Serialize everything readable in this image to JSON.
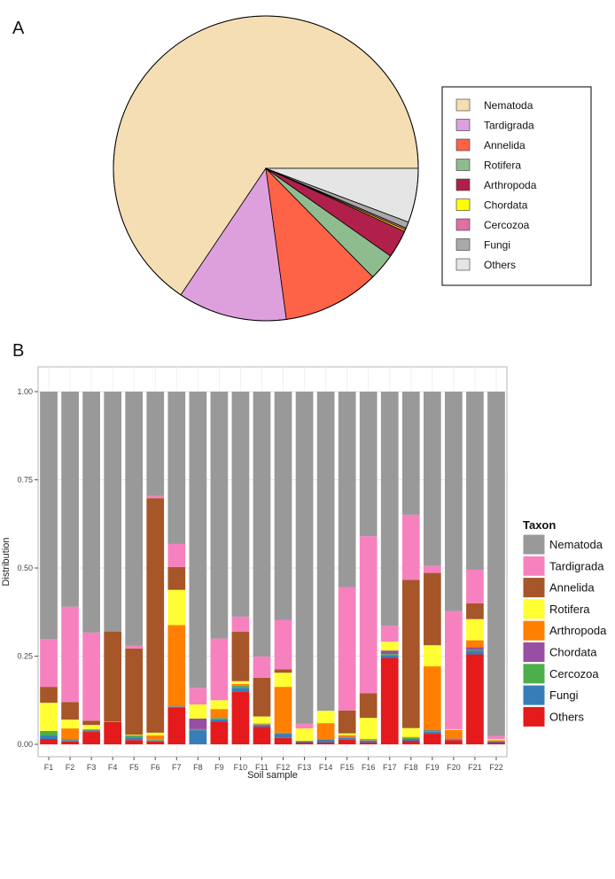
{
  "chart_data": [
    {
      "panel": "A",
      "type": "pie",
      "categories": [
        "Nematoda",
        "Tardigrada",
        "Annelida",
        "Rotifera",
        "Arthropoda",
        "Chordata",
        "Cercozoa",
        "Fungi",
        "Others"
      ],
      "values": [
        0.686,
        0.121,
        0.107,
        0.03,
        0.031,
        0.002,
        0.002,
        0.007,
        0.06
      ],
      "colors": [
        "#F5DEB3",
        "#DDA0DD",
        "#FF6347",
        "#8FBC8F",
        "#B0204B",
        "#FFFF00",
        "#E070A0",
        "#A9A9A9",
        "#E5E5E5"
      ],
      "legend_position": "right"
    },
    {
      "panel": "B",
      "type": "bar",
      "stacked": true,
      "xlabel": "Soil sample",
      "ylabel": "Distribution",
      "ylim": [
        0,
        1
      ],
      "yticks": [
        "0.00",
        "0.25",
        "0.50",
        "0.75",
        "1.00"
      ],
      "legend_title": "Taxon",
      "categories": [
        "F1",
        "F2",
        "F3",
        "F4",
        "F5",
        "F6",
        "F7",
        "F8",
        "F9",
        "F10",
        "F11",
        "F12",
        "F13",
        "F14",
        "F15",
        "F16",
        "F17",
        "F18",
        "F19",
        "F20",
        "F21",
        "F22"
      ],
      "series": [
        {
          "name": "Others",
          "color": "#E41A1C",
          "values": [
            0.015,
            0.008,
            0.035,
            0.063,
            0.012,
            0.008,
            0.103,
            0.0,
            0.065,
            0.15,
            0.05,
            0.018,
            0.005,
            0.005,
            0.013,
            0.005,
            0.245,
            0.01,
            0.03,
            0.012,
            0.255,
            0.005
          ]
        },
        {
          "name": "Fungi",
          "color": "#377EB8",
          "values": [
            0.01,
            0.004,
            0.004,
            0.0,
            0.007,
            0.002,
            0.003,
            0.04,
            0.006,
            0.01,
            0.004,
            0.012,
            0.003,
            0.008,
            0.005,
            0.005,
            0.008,
            0.005,
            0.006,
            0.002,
            0.01,
            0.003
          ]
        },
        {
          "name": "Cercozoa",
          "color": "#4DAF4A",
          "values": [
            0.013,
            0.002,
            0.001,
            0.002,
            0.005,
            0.002,
            0.001,
            0.003,
            0.003,
            0.005,
            0.002,
            0.002,
            0.001,
            0.001,
            0.002,
            0.001,
            0.003,
            0.003,
            0.003,
            0.001,
            0.002,
            0.001
          ]
        },
        {
          "name": "Chordata",
          "color": "#984EA3",
          "values": [
            0.0,
            0.001,
            0.001,
            0.0,
            0.001,
            0.001,
            0.001,
            0.03,
            0.001,
            0.001,
            0.001,
            0.001,
            0.001,
            0.001,
            0.001,
            0.001,
            0.01,
            0.001,
            0.002,
            0.001,
            0.008,
            0.001
          ]
        },
        {
          "name": "Arthropoda",
          "color": "#FF7F00",
          "values": [
            0.0,
            0.03,
            0.002,
            0.0,
            0.0,
            0.012,
            0.23,
            0.0,
            0.025,
            0.005,
            0.002,
            0.13,
            0.0,
            0.045,
            0.005,
            0.003,
            0.0,
            0.002,
            0.18,
            0.025,
            0.02,
            0.002
          ]
        },
        {
          "name": "Rotifera",
          "color": "#FFFF33",
          "values": [
            0.08,
            0.025,
            0.012,
            0.0,
            0.002,
            0.008,
            0.1,
            0.04,
            0.025,
            0.008,
            0.02,
            0.04,
            0.035,
            0.035,
            0.005,
            0.06,
            0.025,
            0.025,
            0.06,
            0.002,
            0.06,
            0.003
          ]
        },
        {
          "name": "Annelida",
          "color": "#A65628",
          "values": [
            0.045,
            0.05,
            0.012,
            0.255,
            0.245,
            0.665,
            0.065,
            0.0,
            0.0,
            0.14,
            0.11,
            0.01,
            0.0,
            0.0,
            0.065,
            0.07,
            0.0,
            0.42,
            0.205,
            0.0,
            0.045,
            0.0
          ]
        },
        {
          "name": "Tardigrada",
          "color": "#F781BF",
          "values": [
            0.135,
            0.27,
            0.25,
            0.0,
            0.008,
            0.006,
            0.065,
            0.047,
            0.175,
            0.043,
            0.06,
            0.14,
            0.013,
            0.0,
            0.35,
            0.445,
            0.045,
            0.185,
            0.02,
            0.335,
            0.095,
            0.008
          ]
        },
        {
          "name": "Nematoda",
          "color": "#999999",
          "values": [
            0.702,
            0.61,
            0.683,
            0.68,
            0.72,
            0.296,
            0.432,
            0.84,
            0.7,
            0.638,
            0.751,
            0.647,
            0.942,
            0.905,
            0.554,
            0.41,
            0.664,
            0.349,
            0.494,
            0.622,
            0.505,
            0.977
          ]
        }
      ]
    }
  ],
  "panel_a_label": "A",
  "panel_b_label": "B"
}
